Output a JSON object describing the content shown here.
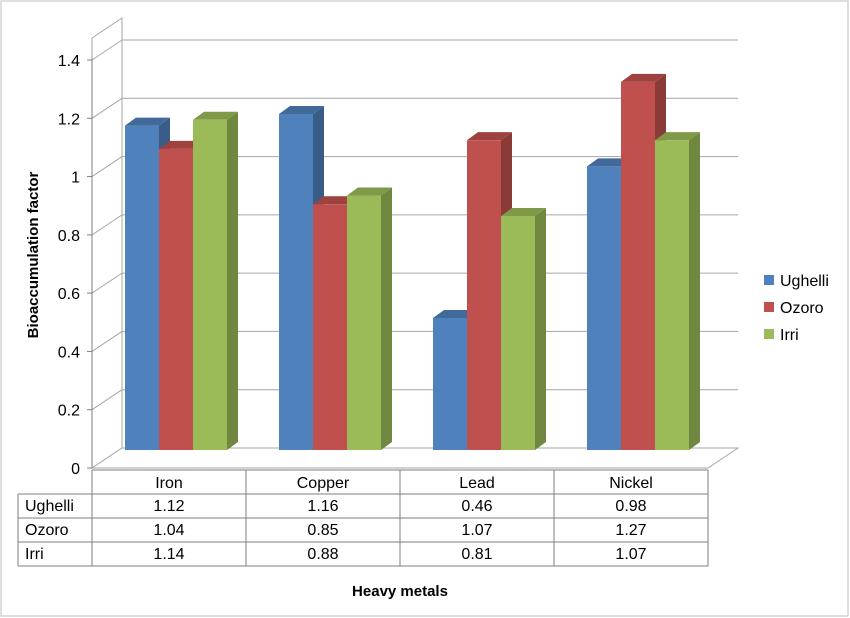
{
  "chart_data": {
    "type": "bar",
    "title": "",
    "ylabel": "Bioaccumulation factor",
    "xlabel": "Heavy metals",
    "ylim": [
      0,
      1.4
    ],
    "yticks": [
      "0",
      "0.2",
      "0.4",
      "0.6",
      "0.8",
      "1",
      "1.2",
      "1.4"
    ],
    "categories": [
      "Iron",
      "Copper",
      "Lead",
      "Nickel"
    ],
    "grid": true,
    "legend_position": "right",
    "series": [
      {
        "name": "Ughelli",
        "color": "#4f81bd",
        "values": [
          1.12,
          1.16,
          0.46,
          0.98
        ],
        "labels": [
          "1.12",
          "1.16",
          "0.46",
          "0.98"
        ]
      },
      {
        "name": "Ozoro",
        "color": "#c0504d",
        "values": [
          1.04,
          0.85,
          1.07,
          1.27
        ],
        "labels": [
          "1.04",
          "0.85",
          "1.07",
          "1.27"
        ]
      },
      {
        "name": "Irri",
        "color": "#9bbb59",
        "values": [
          1.14,
          0.88,
          0.81,
          1.07
        ],
        "labels": [
          "1.14",
          "0.88",
          "0.81",
          "1.07"
        ]
      }
    ]
  }
}
